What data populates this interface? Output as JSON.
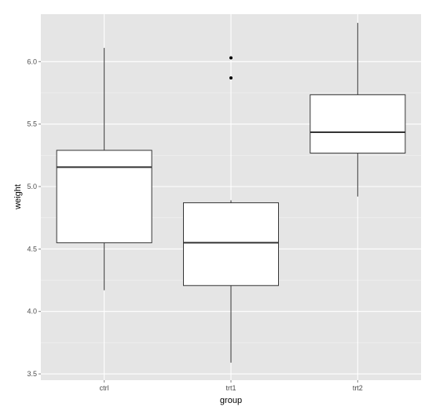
{
  "chart_data": {
    "type": "boxplot",
    "title": "",
    "xlabel": "group",
    "ylabel": "weight",
    "ylim": [
      3.45,
      6.38
    ],
    "yticks": [
      "3.5",
      "4.0",
      "4.5",
      "5.0",
      "5.5",
      "6.0"
    ],
    "categories": [
      "ctrl",
      "trt1",
      "trt2"
    ],
    "boxes": [
      {
        "name": "ctrl",
        "whisker_low": 4.17,
        "q1": 4.55,
        "median": 5.155,
        "q3": 5.29,
        "whisker_high": 6.11,
        "outliers": []
      },
      {
        "name": "trt1",
        "whisker_low": 3.59,
        "q1": 4.2075,
        "median": 4.55,
        "q3": 4.87,
        "whisker_high": 4.89,
        "outliers": [
          5.87,
          6.03
        ]
      },
      {
        "name": "trt2",
        "whisker_low": 4.92,
        "q1": 5.2675,
        "median": 5.435,
        "q3": 5.735,
        "whisker_high": 6.31,
        "outliers": []
      }
    ],
    "grid": true,
    "colors": {
      "panel": "#e5e5e5",
      "grid_major": "#ffffff",
      "grid_minor": "#f2f2f2",
      "box_fill": "#ffffff",
      "box_stroke": "#333333"
    }
  }
}
